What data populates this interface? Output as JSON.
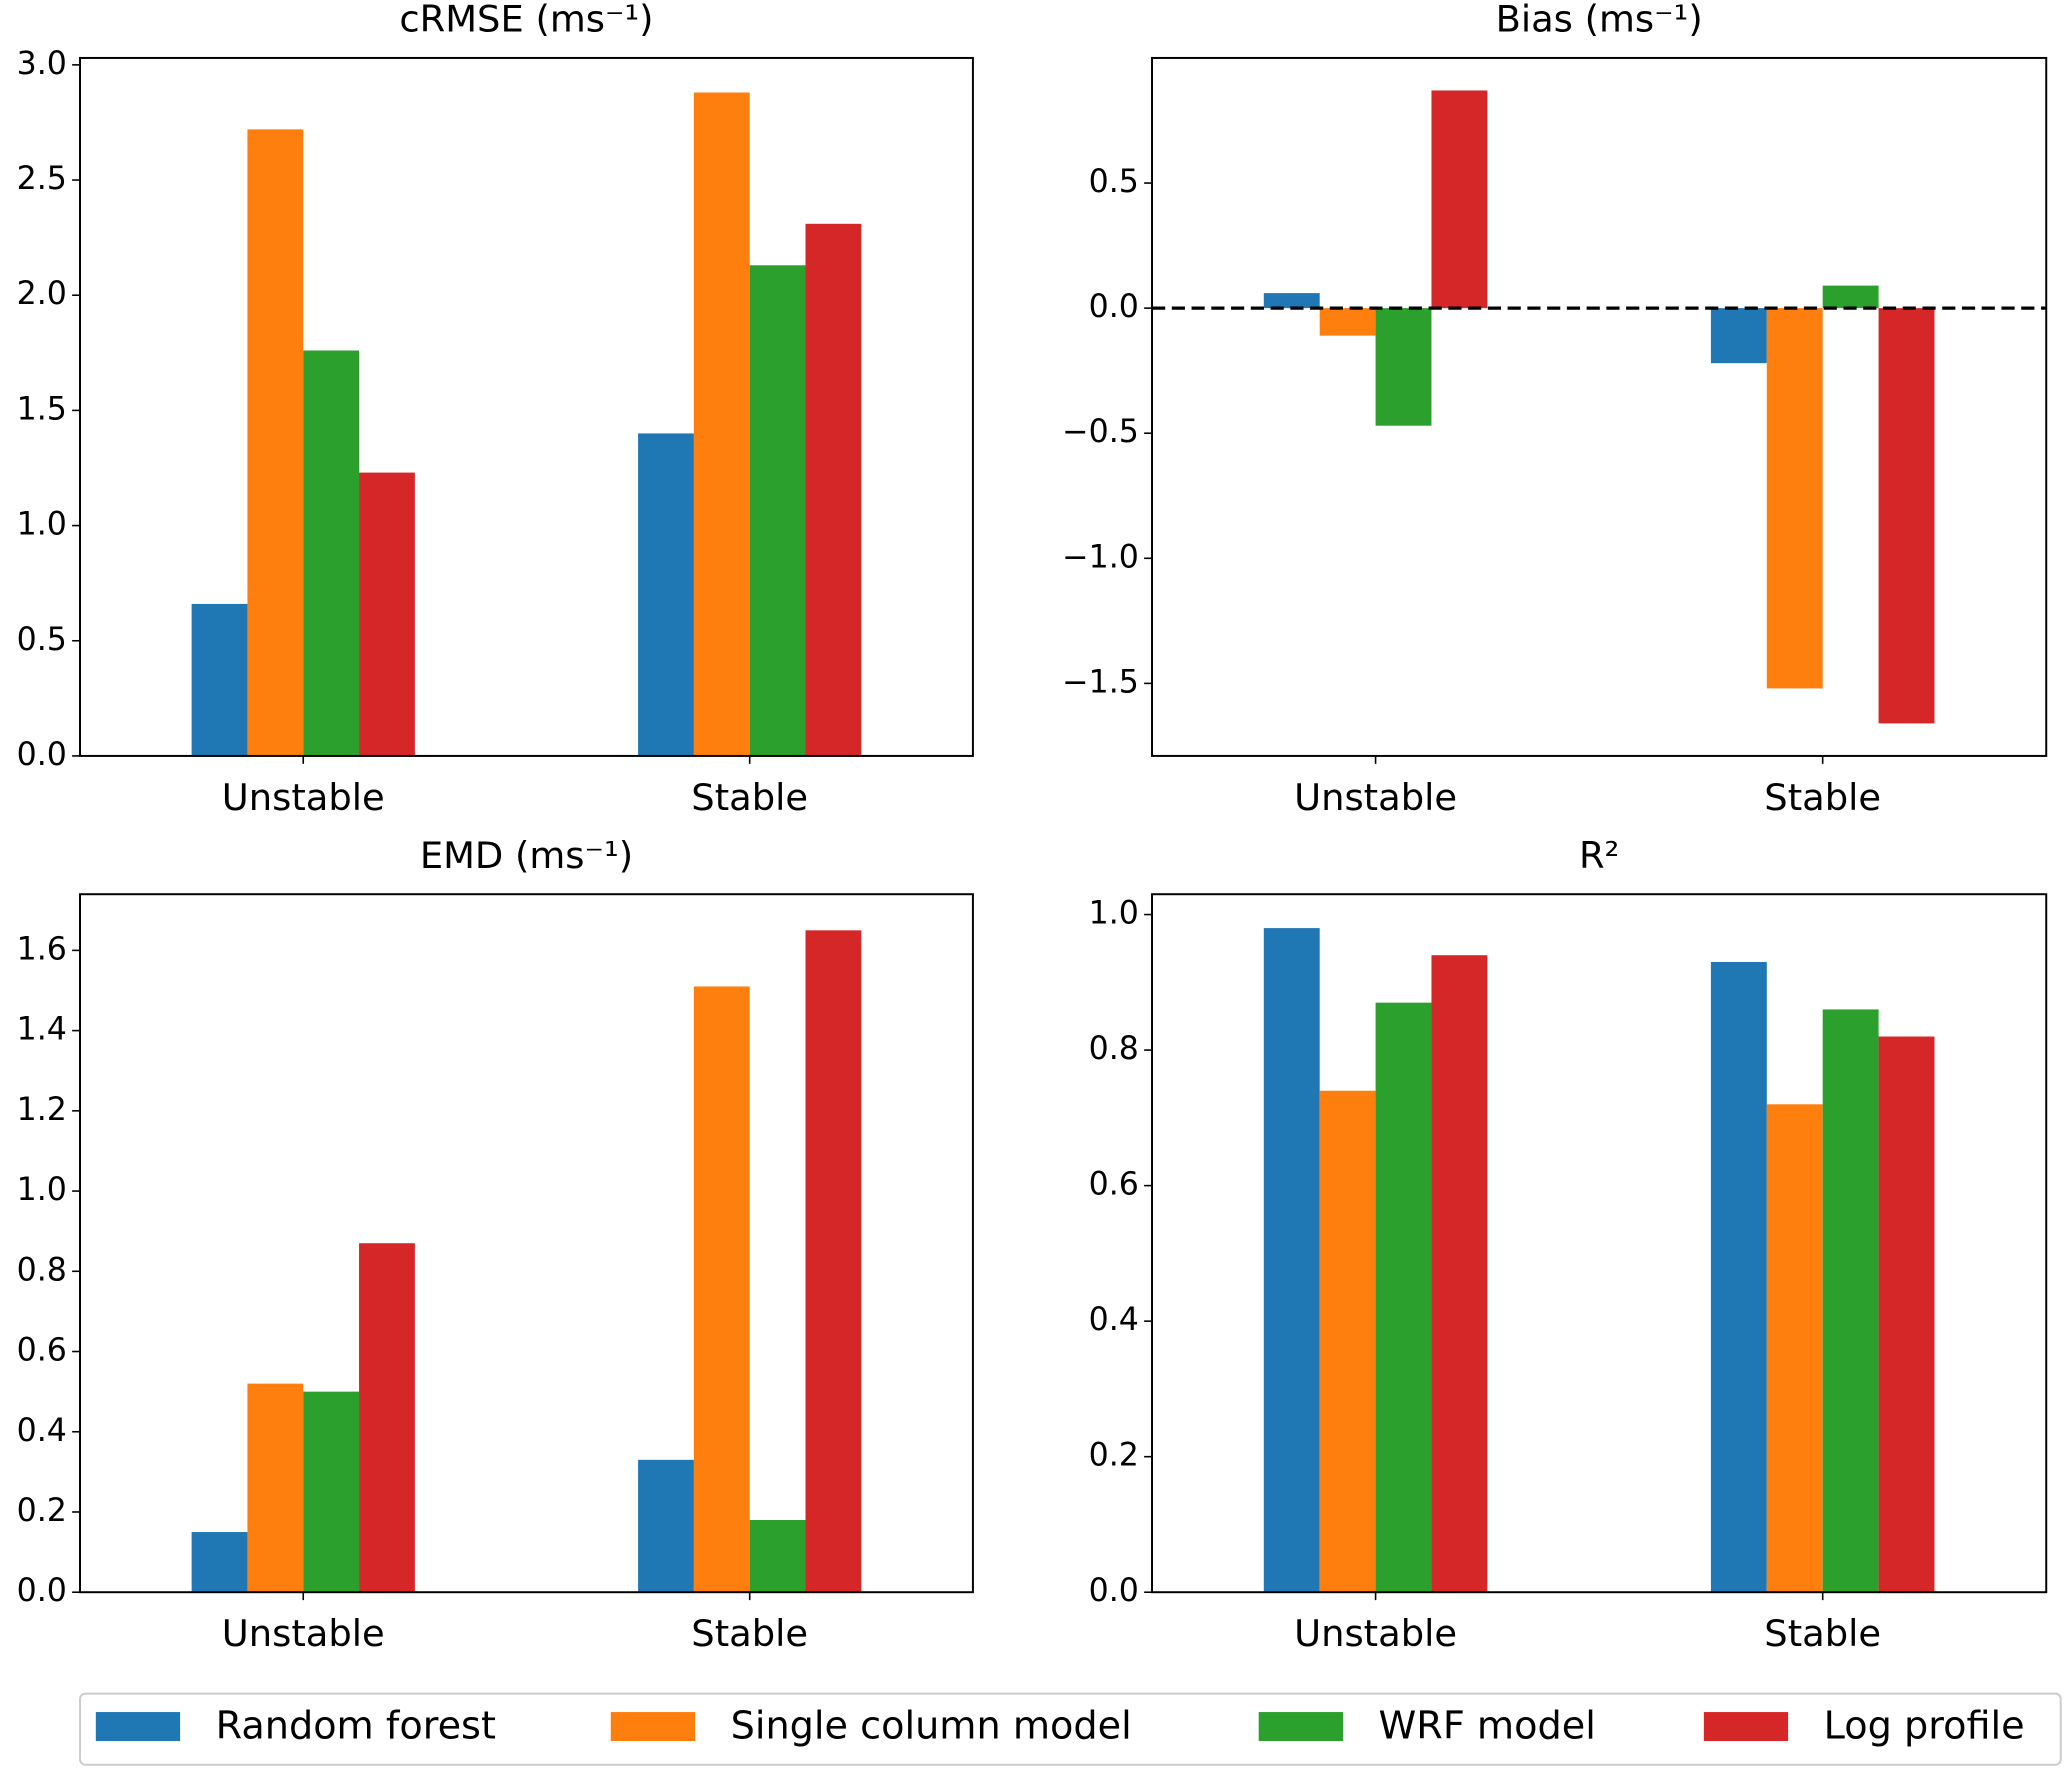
{
  "legend": [
    {
      "name": "Random forest",
      "color": "#1f77b4"
    },
    {
      "name": "Single column model",
      "color": "#ff7f0e"
    },
    {
      "name": "WRF model",
      "color": "#2ca02c"
    },
    {
      "name": "Log profile",
      "color": "#d62728"
    }
  ],
  "chart_data": [
    {
      "type": "bar",
      "title": "cRMSE (ms⁻¹)",
      "categories": [
        "Unstable",
        "Stable"
      ],
      "series": [
        {
          "values": [
            0.66,
            1.4
          ]
        },
        {
          "values": [
            2.72,
            2.88
          ]
        },
        {
          "values": [
            1.76,
            2.13
          ]
        },
        {
          "values": [
            1.23,
            2.31
          ]
        }
      ],
      "ylim": [
        0,
        3.03
      ],
      "yticks": [
        {
          "value": 0,
          "label": "0.0"
        },
        0.5,
        {
          "value": 1,
          "label": "1.0"
        },
        1.5,
        {
          "value": 2,
          "label": "2.0"
        },
        2.5,
        {
          "value": 3,
          "label": "3.0"
        }
      ]
    },
    {
      "type": "bar",
      "title": "Bias (ms⁻¹)",
      "categories": [
        "Unstable",
        "Stable"
      ],
      "series": [
        {
          "values": [
            0.06,
            -0.22
          ]
        },
        {
          "values": [
            -0.11,
            -1.52
          ]
        },
        {
          "values": [
            -0.47,
            0.09
          ]
        },
        {
          "values": [
            0.87,
            -1.66
          ]
        }
      ],
      "ylim": [
        -1.79,
        1.0
      ],
      "hline": 0,
      "yticks": [
        {
          "value": -1.5,
          "label": "−1.5"
        },
        {
          "value": -1,
          "label": "−1.0"
        },
        {
          "value": -0.5,
          "label": "−0.5"
        },
        {
          "value": 0,
          "label": "0.0"
        },
        0.5
      ]
    },
    {
      "type": "bar",
      "title": "EMD (ms⁻¹)",
      "categories": [
        "Unstable",
        "Stable"
      ],
      "series": [
        {
          "values": [
            0.15,
            0.33
          ]
        },
        {
          "values": [
            0.52,
            1.51
          ]
        },
        {
          "values": [
            0.5,
            0.18
          ]
        },
        {
          "values": [
            0.87,
            1.65
          ]
        }
      ],
      "ylim": [
        0,
        1.74
      ],
      "yticks": [
        {
          "value": 0,
          "label": "0.0"
        },
        0.2,
        0.4,
        0.6,
        0.8,
        {
          "value": 1,
          "label": "1.0"
        },
        1.2,
        1.4,
        1.6
      ]
    },
    {
      "type": "bar",
      "title": "R²",
      "categories": [
        "Unstable",
        "Stable"
      ],
      "series": [
        {
          "values": [
            0.98,
            0.93
          ]
        },
        {
          "values": [
            0.74,
            0.72
          ]
        },
        {
          "values": [
            0.87,
            0.86
          ]
        },
        {
          "values": [
            0.94,
            0.82
          ]
        }
      ],
      "ylim": [
        0,
        1.03
      ],
      "yticks": [
        {
          "value": 0,
          "label": "0.0"
        },
        0.2,
        0.4,
        0.6,
        0.8,
        {
          "value": 1,
          "label": "1.0"
        }
      ]
    }
  ]
}
